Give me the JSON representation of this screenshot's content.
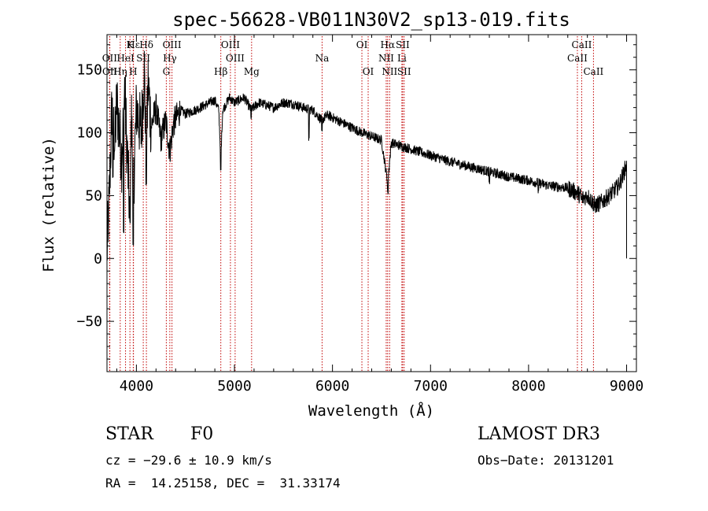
{
  "chart_data": {
    "type": "line",
    "title": "spec-56628-VB011N30V2_sp13-019.fits",
    "xlabel": "Wavelength (Å)",
    "ylabel": "Flux (relative)",
    "xlim": [
      3700,
      9100
    ],
    "ylim": [
      -90,
      178
    ],
    "xticks": [
      4000,
      5000,
      6000,
      7000,
      8000,
      9000
    ],
    "yticks": [
      -50,
      0,
      50,
      100,
      150
    ],
    "grid": false,
    "spectrum_anchors": [
      [
        3700,
        5
      ],
      [
        3720,
        40
      ],
      [
        3750,
        120
      ],
      [
        3780,
        90
      ],
      [
        3800,
        125
      ],
      [
        3850,
        80
      ],
      [
        3880,
        135
      ],
      [
        3900,
        95
      ],
      [
        3930,
        40
      ],
      [
        3950,
        110
      ],
      [
        3970,
        55
      ],
      [
        4000,
        120
      ],
      [
        4050,
        100
      ],
      [
        4080,
        150
      ],
      [
        4100,
        80
      ],
      [
        4120,
        140
      ],
      [
        4150,
        105
      ],
      [
        4200,
        120
      ],
      [
        4250,
        95
      ],
      [
        4300,
        110
      ],
      [
        4340,
        85
      ],
      [
        4380,
        108
      ],
      [
        4450,
        118
      ],
      [
        4500,
        115
      ],
      [
        4600,
        118
      ],
      [
        4700,
        122
      ],
      [
        4800,
        126
      ],
      [
        4840,
        118
      ],
      [
        4861,
        80
      ],
      [
        4880,
        118
      ],
      [
        4950,
        128
      ],
      [
        5000,
        124
      ],
      [
        5100,
        128
      ],
      [
        5170,
        118
      ],
      [
        5250,
        124
      ],
      [
        5400,
        120
      ],
      [
        5500,
        124
      ],
      [
        5600,
        123
      ],
      [
        5700,
        120
      ],
      [
        5800,
        118
      ],
      [
        5890,
        110
      ],
      [
        5950,
        114
      ],
      [
        6100,
        108
      ],
      [
        6300,
        100
      ],
      [
        6500,
        94
      ],
      [
        6563,
        60
      ],
      [
        6600,
        92
      ],
      [
        6800,
        87
      ],
      [
        7000,
        82
      ],
      [
        7200,
        77
      ],
      [
        7400,
        73
      ],
      [
        7600,
        69
      ],
      [
        7800,
        65
      ],
      [
        8000,
        62
      ],
      [
        8200,
        58
      ],
      [
        8400,
        56
      ],
      [
        8500,
        52
      ],
      [
        8550,
        48
      ],
      [
        8600,
        50
      ],
      [
        8680,
        42
      ],
      [
        8750,
        45
      ],
      [
        8850,
        52
      ],
      [
        8920,
        58
      ],
      [
        8970,
        68
      ],
      [
        9000,
        75
      ],
      [
        9000,
        0
      ]
    ],
    "noise": {
      "default_amplitude": 4,
      "amplitude_bands": [
        {
          "from": 3700,
          "to": 4150,
          "amplitude": 28
        },
        {
          "from": 4150,
          "to": 4450,
          "amplitude": 12
        },
        {
          "from": 8400,
          "to": 9000,
          "amplitude": 7
        }
      ]
    },
    "absorption_spikes": [
      {
        "wavelength": 3760,
        "value": 65
      },
      {
        "wavelength": 3870,
        "value": 20
      },
      {
        "wavelength": 3934,
        "value": 30
      },
      {
        "wavelength": 3968,
        "value": 10
      },
      {
        "wavelength": 4101,
        "value": 60
      },
      {
        "wavelength": 4861,
        "value": 70
      },
      {
        "wavelength": 5170,
        "value": 112
      },
      {
        "wavelength": 5760,
        "value": 95
      },
      {
        "wavelength": 5893,
        "value": 100
      },
      {
        "wavelength": 6565,
        "value": 52
      },
      {
        "wavelength": 7600,
        "value": 60
      },
      {
        "wavelength": 8100,
        "value": 53
      },
      {
        "wavelength": 8540,
        "value": 46
      },
      {
        "wavelength": 8665,
        "value": 38
      }
    ],
    "lines": [
      {
        "label": "Hε",
        "wavelength": 3970,
        "row": 1
      },
      {
        "label": "Hδ",
        "wavelength": 4102,
        "row": 1
      },
      {
        "label": "K",
        "wavelength": 3934,
        "row": 1
      },
      {
        "label": "OII",
        "wavelength": 3727,
        "row": 2
      },
      {
        "label": "HeI",
        "wavelength": 3889,
        "row": 2
      },
      {
        "label": "SII",
        "wavelength": 4070,
        "row": 2
      },
      {
        "label": "OIII",
        "wavelength": 4363,
        "row": 1
      },
      {
        "label": "Hγ",
        "wavelength": 4341,
        "row": 2
      },
      {
        "label": "OII",
        "wavelength": 3729,
        "row": 3
      },
      {
        "label": "Hη",
        "wavelength": 3835,
        "row": 3
      },
      {
        "label": "H",
        "wavelength": 3968,
        "row": 3
      },
      {
        "label": "G",
        "wavelength": 4305,
        "row": 3
      },
      {
        "label": "OIII",
        "wavelength": 4959,
        "row": 1
      },
      {
        "label": "OIII",
        "wavelength": 5007,
        "row": 2
      },
      {
        "label": "Hβ",
        "wavelength": 4861,
        "row": 3
      },
      {
        "label": "Mg",
        "wavelength": 5175,
        "row": 3
      },
      {
        "label": "Na",
        "wavelength": 5894,
        "row": 2
      },
      {
        "label": "OI",
        "wavelength": 6300,
        "row": 1
      },
      {
        "label": "OI",
        "wavelength": 6364,
        "row": 3
      },
      {
        "label": "Hα",
        "wavelength": 6563,
        "row": 1
      },
      {
        "label": "SII",
        "wavelength": 6716,
        "row": 1
      },
      {
        "label": "NII",
        "wavelength": 6548,
        "row": 2
      },
      {
        "label": "Li",
        "wavelength": 6708,
        "row": 2
      },
      {
        "label": "NII",
        "wavelength": 6583,
        "row": 3
      },
      {
        "label": "SII",
        "wavelength": 6731,
        "row": 3
      },
      {
        "label": "CaII",
        "wavelength": 8542,
        "row": 1
      },
      {
        "label": "CaII",
        "wavelength": 8498,
        "row": 2
      },
      {
        "label": "CaII",
        "wavelength": 8662,
        "row": 3
      }
    ],
    "marker_color": "#c00000"
  },
  "info": {
    "class": "STAR",
    "subclass": "F0",
    "survey": "LAMOST DR3",
    "cz": "cz = −29.6 ± 10.9 km/s",
    "obs_date": "Obs−Date: 20131201",
    "coords": "RA =  14.25158, DEC =  31.33174"
  }
}
